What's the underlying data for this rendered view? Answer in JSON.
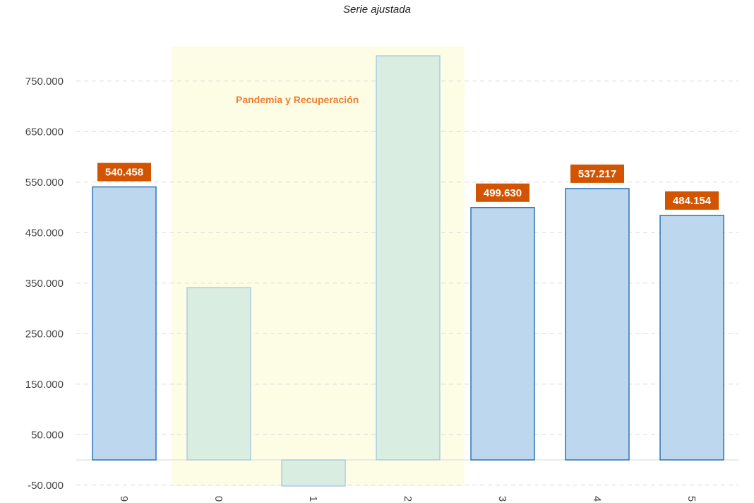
{
  "subtitle": "Serie ajustada",
  "chart_data": {
    "type": "bar",
    "subtitle": "Serie ajustada",
    "categories": [
      "9",
      "0",
      "1",
      "2",
      "3",
      "4",
      "5"
    ],
    "values": [
      540458,
      341000,
      -52000,
      800000,
      499630,
      537217,
      484154
    ],
    "data_labels": [
      "540.458",
      "",
      "",
      "",
      "499.630",
      "537.217",
      "484.154"
    ],
    "highlight": {
      "from": "0",
      "to": "2",
      "label": "Pandemia y Recuperación",
      "color": "#fdfde6"
    },
    "ylim": [
      -50000,
      800000
    ],
    "yticks": [
      -50000,
      50000,
      150000,
      250000,
      350000,
      450000,
      550000,
      650000,
      750000
    ],
    "ytick_labels": [
      "-50.000",
      "50.000",
      "150.000",
      "250.000",
      "350.000",
      "450.000",
      "550.000",
      "650.000",
      "750.000"
    ],
    "grid": true,
    "colors": {
      "normal_fill": "#bdd7ee",
      "normal_stroke": "#2e75b6",
      "highlight_fill": "#d9ede0",
      "highlight_stroke": "#9dc3e6",
      "label_bg": "#d35400"
    }
  }
}
